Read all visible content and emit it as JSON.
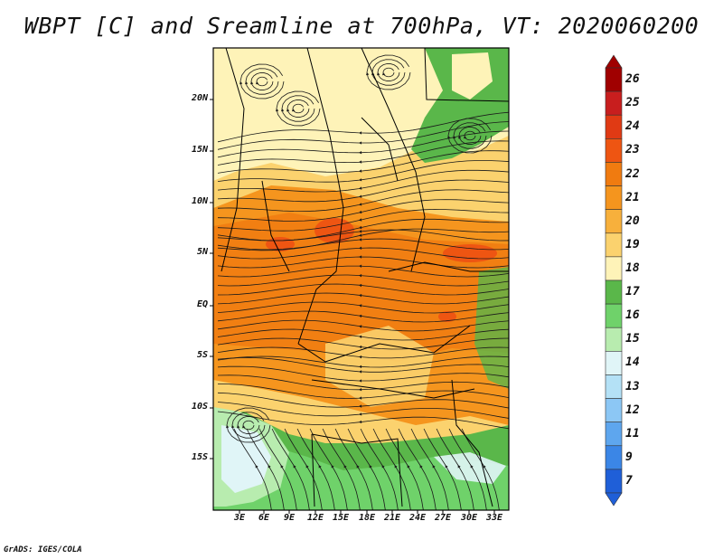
{
  "title": "WBPT [C] and Sreamline at 700hPa, VT: 2020060200",
  "credit": "GrADS: IGES/COLA",
  "map": {
    "variable": "Wet-bulb potential temperature",
    "units": "C",
    "level": "700hPa",
    "valid_time": "2020060200",
    "lat_labels": [
      "20N",
      "15N",
      "10N",
      "5N",
      "EQ",
      "5S",
      "10S",
      "15S"
    ],
    "lon_labels": [
      "3E",
      "6E",
      "9E",
      "12E",
      "15E",
      "18E",
      "21E",
      "24E",
      "27E",
      "30E",
      "33E"
    ],
    "regions": [
      {
        "name": "north-pale",
        "value": 19
      },
      {
        "name": "central-band",
        "value": 21
      },
      {
        "name": "hot-spots",
        "value": 23
      },
      {
        "name": "northeast-green",
        "value": 17
      },
      {
        "name": "south-green",
        "value": 17
      },
      {
        "name": "southwest-cool",
        "value": 15
      }
    ]
  },
  "colorbar": {
    "levels": [
      "26",
      "25",
      "24",
      "23",
      "22",
      "21",
      "20",
      "19",
      "18",
      "17",
      "16",
      "15",
      "14",
      "13",
      "12",
      "11",
      "9",
      "7"
    ],
    "colors": [
      "#a00000",
      "#c81e1e",
      "#e03a14",
      "#ee5512",
      "#f07b10",
      "#f5951e",
      "#f7b03c",
      "#fbd26e",
      "#fef3b8",
      "#5ab74a",
      "#6fd26a",
      "#b8ecaf",
      "#e0f5f7",
      "#b4e1f6",
      "#8cc7f5",
      "#5ea6ee",
      "#3b86e6",
      "#1f5fd8"
    ]
  }
}
